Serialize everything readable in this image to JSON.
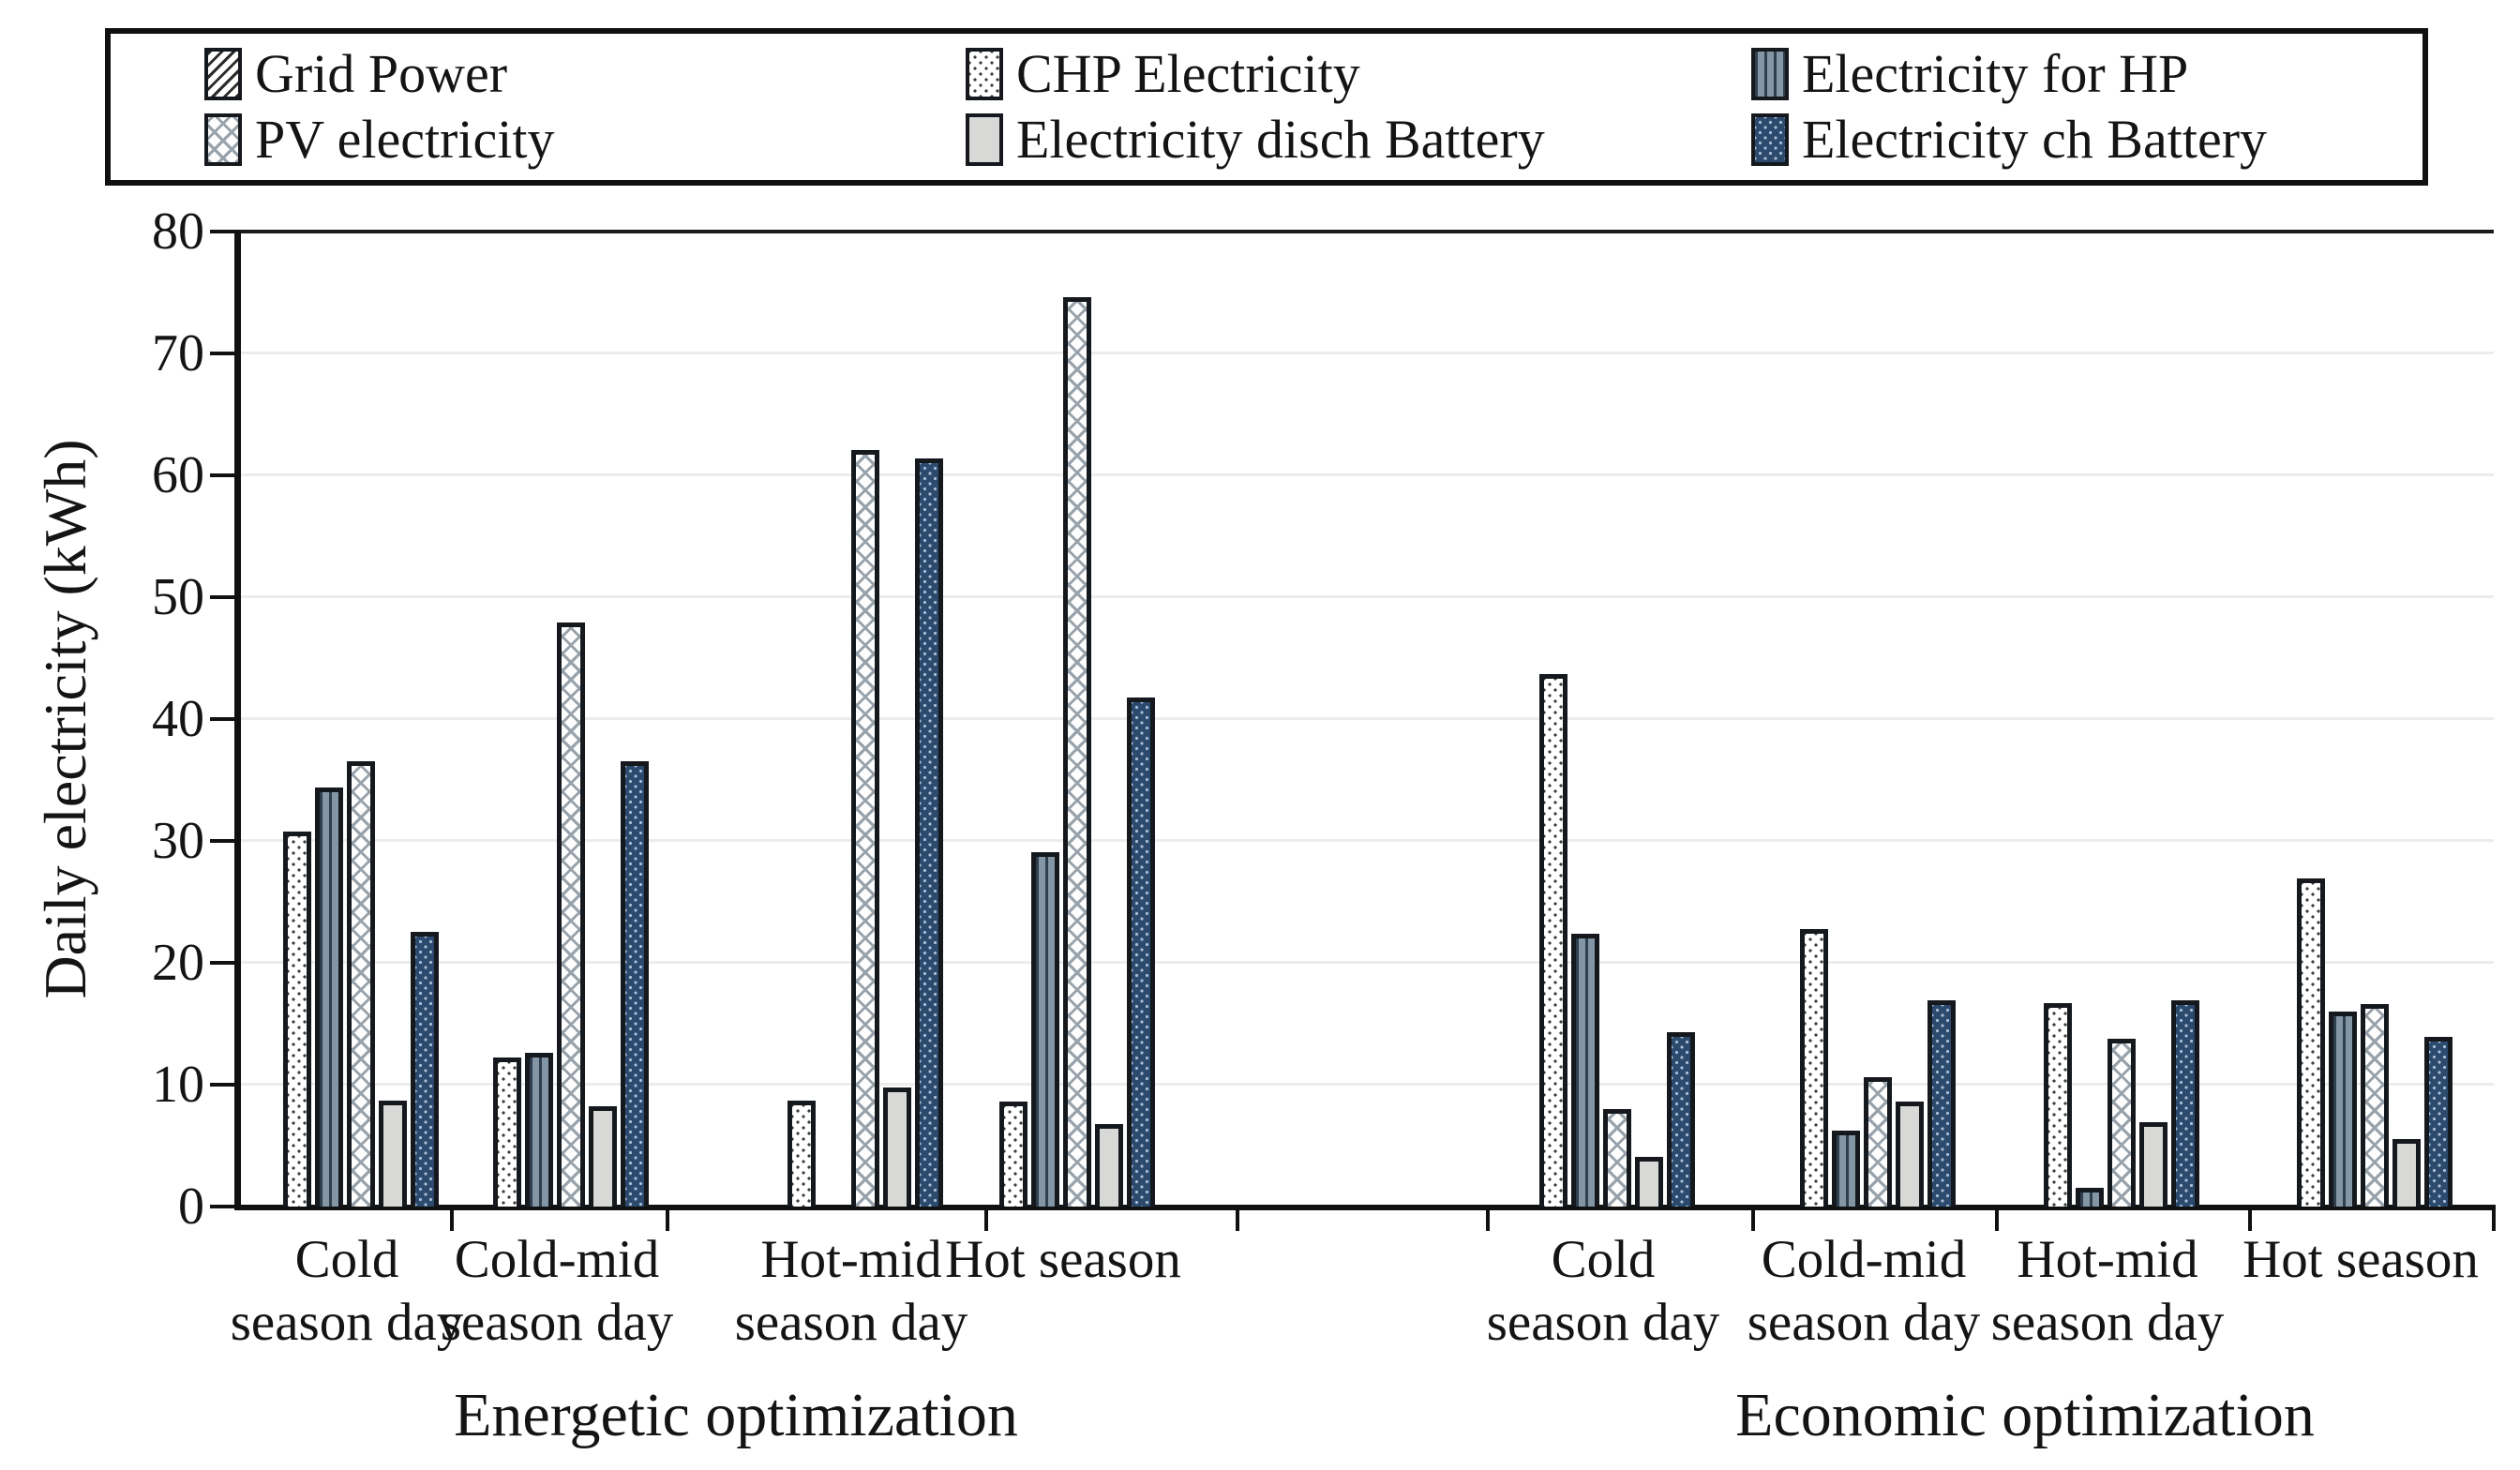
{
  "chart_data": {
    "type": "bar",
    "title": "",
    "ylabel": "Daily electricity (kWh)",
    "ylim": [
      0,
      80
    ],
    "yticks": [
      0,
      10,
      20,
      30,
      40,
      50,
      60,
      70,
      80
    ],
    "grid": true,
    "legend_position": "top",
    "legend": [
      {
        "label": "Grid Power",
        "pattern": "grid"
      },
      {
        "label": "CHP Electricity",
        "pattern": "chp"
      },
      {
        "label": "Electricity for HP",
        "pattern": "hp"
      },
      {
        "label": "PV electricity",
        "pattern": "pv"
      },
      {
        "label": "Electricity disch Battery",
        "pattern": "disch"
      },
      {
        "label": "Electricity ch Battery",
        "pattern": "ch"
      }
    ],
    "sections": [
      {
        "title": "Energetic optimization",
        "categories": [
          {
            "label": "Cold season day",
            "lines": [
              "Cold",
              "season day"
            ]
          },
          {
            "label": "Cold-mid season day",
            "lines": [
              "Cold-mid",
              "season day"
            ]
          },
          {
            "label": "Hot-mid season day",
            "lines": [
              "Hot-mid",
              "season day"
            ]
          },
          {
            "label": "Hot season",
            "lines": [
              "Hot season"
            ]
          }
        ],
        "series": [
          {
            "name": "Grid Power",
            "pattern": "grid",
            "values": [
              0,
              0,
              0,
              0
            ]
          },
          {
            "name": "CHP Electricity",
            "pattern": "chp",
            "values": [
              30.8,
              12.2,
              8.7,
              8.6
            ]
          },
          {
            "name": "Electricity for HP",
            "pattern": "hp",
            "values": [
              34.4,
              12.6,
              0,
              29.1
            ]
          },
          {
            "name": "PV electricity",
            "pattern": "pv",
            "values": [
              36.5,
              47.9,
              62.1,
              74.6
            ]
          },
          {
            "name": "Electricity disch Battery",
            "pattern": "disch",
            "values": [
              8.7,
              8.2,
              9.8,
              6.8
            ]
          },
          {
            "name": "Electricity ch Battery",
            "pattern": "ch",
            "values": [
              22.5,
              36.5,
              61.4,
              41.8
            ]
          }
        ]
      },
      {
        "title": "Economic optimization",
        "categories": [
          {
            "label": "Cold season day",
            "lines": [
              "Cold",
              "season day"
            ]
          },
          {
            "label": "Cold-mid season day",
            "lines": [
              "Cold-mid",
              "season day"
            ]
          },
          {
            "label": "Hot-mid season day",
            "lines": [
              "Hot-mid",
              "season day"
            ]
          },
          {
            "label": "Hot season",
            "lines": [
              "Hot season"
            ]
          }
        ],
        "series": [
          {
            "name": "Grid Power",
            "pattern": "grid",
            "values": [
              0,
              0,
              0,
              0
            ]
          },
          {
            "name": "CHP Electricity",
            "pattern": "chp",
            "values": [
              43.7,
              22.8,
              16.7,
              26.9
            ]
          },
          {
            "name": "Electricity for HP",
            "pattern": "hp",
            "values": [
              22.4,
              6.2,
              1.5,
              16.0
            ]
          },
          {
            "name": "PV electricity",
            "pattern": "pv",
            "values": [
              8.0,
              10.6,
              13.8,
              16.6
            ]
          },
          {
            "name": "Electricity disch Battery",
            "pattern": "disch",
            "values": [
              4.1,
              8.6,
              6.9,
              5.5
            ]
          },
          {
            "name": "Electricity ch Battery",
            "pattern": "ch",
            "values": [
              14.3,
              16.9,
              16.9,
              13.9
            ]
          }
        ]
      }
    ],
    "colors": {
      "bar_outline": "#15181c",
      "chp_dot": "#3d3d3d",
      "hp_fill": "#8396a6",
      "hp_stripe": "#2f3f4d",
      "pv_lattice": "#98a2ab",
      "disch_fill": "#d8d8d6",
      "ch_fill": "#2c4a6e",
      "ch_dot": "#a8bdd4",
      "gridline": "#ececec",
      "axis": "#111111"
    }
  }
}
